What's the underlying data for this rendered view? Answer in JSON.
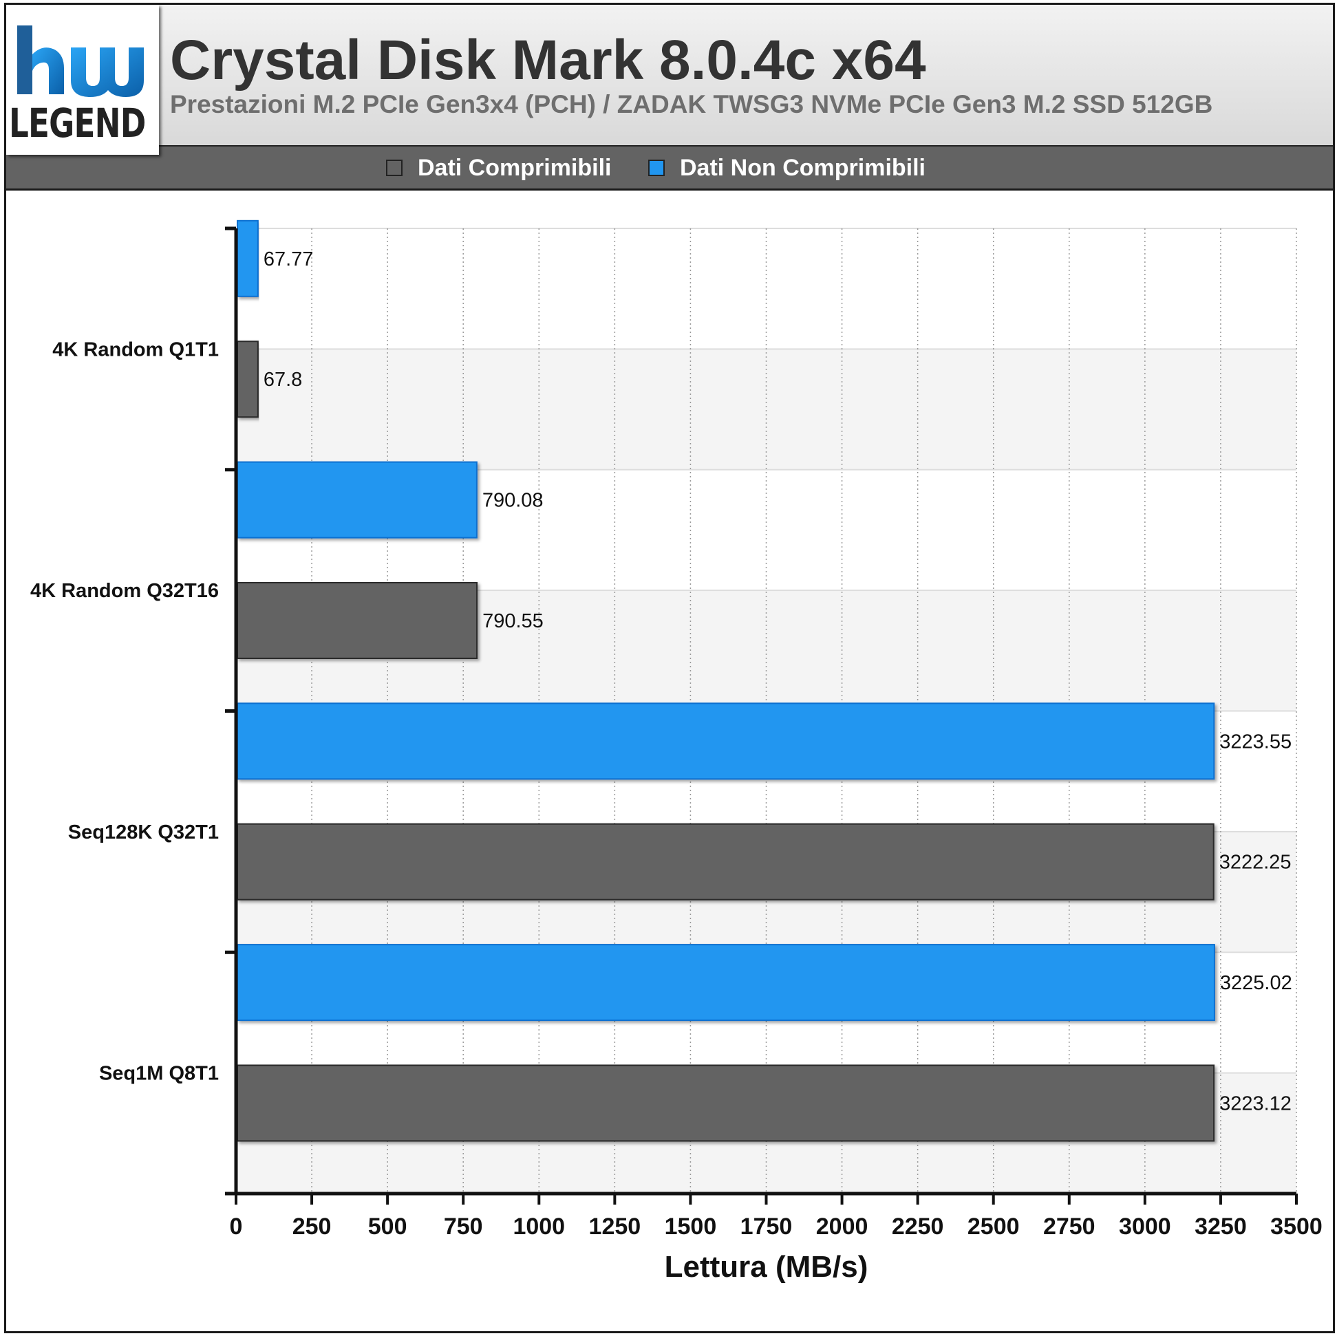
{
  "header": {
    "title": "Crystal Disk Mark 8.0.4c x64",
    "subtitle": "Prestazioni M.2 PCIe Gen3x4 (PCH) / ZADAK TWSG3 NVMe PCIe Gen3 M.2 SSD 512GB",
    "logo_text": "LEGEND",
    "logo_mark": "hw"
  },
  "legend": [
    {
      "label": "Dati Comprimibili",
      "color": "#636363"
    },
    {
      "label": "Dati Non Comprimibili",
      "color": "#2196f0"
    }
  ],
  "chart_data": {
    "type": "bar",
    "orientation": "horizontal",
    "xlabel": "Lettura (MB/s)",
    "xlim": [
      0,
      3500
    ],
    "xticks": [
      0,
      250,
      500,
      750,
      1000,
      1250,
      1500,
      1750,
      2000,
      2250,
      2500,
      2750,
      3000,
      3250,
      3500
    ],
    "categories": [
      "4K Random Q1T1",
      "4K Random Q32T16",
      "Seq128K Q32T1",
      "Seq1M Q8T1"
    ],
    "series": [
      {
        "name": "Dati Non Comprimibili",
        "color": "#2196f0",
        "values": [
          67.77,
          790.08,
          3223.55,
          3225.02
        ],
        "labels": [
          "67.77",
          "790.08",
          "3223.55",
          "3225.02"
        ]
      },
      {
        "name": "Dati Comprimibili",
        "color": "#636363",
        "values": [
          67.8,
          790.55,
          3222.25,
          3223.12
        ],
        "labels": [
          "67.8",
          "790.55",
          "3222.25",
          "3223.12"
        ]
      }
    ],
    "grid": true,
    "legend_position": "top"
  }
}
